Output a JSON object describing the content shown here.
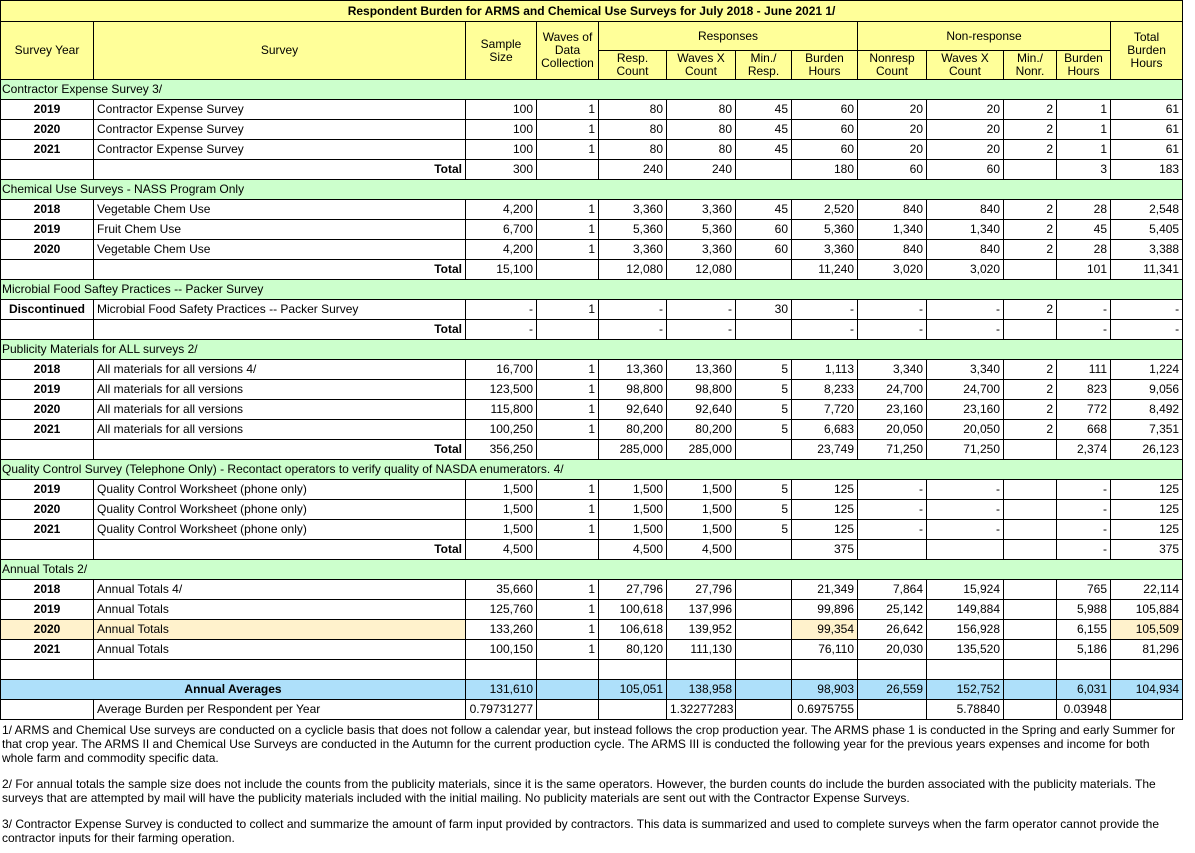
{
  "title": "Respondent Burden for ARMS and Chemical Use Surveys for July 2018 - June 2021 1/",
  "headers": {
    "survey_year": "Survey Year",
    "survey": "Survey",
    "sample_size": "Sample Size",
    "waves": "Waves of Data Collection",
    "responses": "Responses",
    "nonresponse": "Non-response",
    "resp_count": "Resp. Count",
    "waves_x_count": "Waves X Count",
    "min_resp": "Min./ Resp.",
    "burden_hours": "Burden Hours",
    "nonresp_count": "Nonresp Count",
    "waves_x_count2": "Waves X Count",
    "min_nonr": "Min./ Nonr.",
    "burden_hours2": "Burden Hours",
    "total_burden": "Total Burden Hours"
  },
  "rows": [
    {
      "kind": "section",
      "label": "Contractor Expense Survey 3/"
    },
    {
      "kind": "data",
      "cells": [
        "2019",
        "Contractor Expense Survey",
        "100",
        "1",
        "80",
        "80",
        "45",
        "60",
        "20",
        "20",
        "2",
        "1",
        "61"
      ]
    },
    {
      "kind": "data",
      "cells": [
        "2020",
        "Contractor Expense Survey",
        "100",
        "1",
        "80",
        "80",
        "45",
        "60",
        "20",
        "20",
        "2",
        "1",
        "61"
      ]
    },
    {
      "kind": "data",
      "cells": [
        "2021",
        "Contractor Expense Survey",
        "100",
        "1",
        "80",
        "80",
        "45",
        "60",
        "20",
        "20",
        "2",
        "1",
        "61"
      ]
    },
    {
      "kind": "total",
      "cells": [
        "",
        "Total",
        "300",
        "",
        "240",
        "240",
        "",
        "180",
        "60",
        "60",
        "",
        "3",
        "183"
      ]
    },
    {
      "kind": "section",
      "label": "Chemical Use Surveys - NASS Program Only"
    },
    {
      "kind": "data",
      "cells": [
        "2018",
        "Vegetable Chem Use",
        "4,200",
        "1",
        "3,360",
        "3,360",
        "45",
        "2,520",
        "840",
        "840",
        "2",
        "28",
        "2,548"
      ]
    },
    {
      "kind": "data",
      "cells": [
        "2019",
        "Fruit Chem Use",
        "6,700",
        "1",
        "5,360",
        "5,360",
        "60",
        "5,360",
        "1,340",
        "1,340",
        "2",
        "45",
        "5,405"
      ]
    },
    {
      "kind": "data",
      "cells": [
        "2020",
        "Vegetable Chem Use",
        "4,200",
        "1",
        "3,360",
        "3,360",
        "60",
        "3,360",
        "840",
        "840",
        "2",
        "28",
        "3,388"
      ]
    },
    {
      "kind": "total",
      "cells": [
        "",
        "Total",
        "15,100",
        "",
        "12,080",
        "12,080",
        "",
        "11,240",
        "3,020",
        "3,020",
        "",
        "101",
        "11,341"
      ]
    },
    {
      "kind": "section",
      "label": "Microbial Food Saftey Practices -- Packer Survey"
    },
    {
      "kind": "data",
      "cells": [
        "Discontinued",
        "Microbial Food Safety Practices -- Packer Survey",
        "-",
        "1",
        "-",
        "-",
        "30",
        "-",
        "-",
        "-",
        "2",
        "-",
        "-"
      ]
    },
    {
      "kind": "total",
      "cells": [
        "",
        "Total",
        "-",
        "",
        "-",
        "-",
        "",
        "-",
        "-",
        "-",
        "",
        "-",
        "-"
      ]
    },
    {
      "kind": "section",
      "label": "Publicity Materials for ALL surveys 2/"
    },
    {
      "kind": "data",
      "cells": [
        "2018",
        "All materials for all versions 4/",
        "16,700",
        "1",
        "13,360",
        "13,360",
        "5",
        "1,113",
        "3,340",
        "3,340",
        "2",
        "111",
        "1,224"
      ]
    },
    {
      "kind": "data",
      "cells": [
        "2019",
        "All materials for all versions",
        "123,500",
        "1",
        "98,800",
        "98,800",
        "5",
        "8,233",
        "24,700",
        "24,700",
        "2",
        "823",
        "9,056"
      ]
    },
    {
      "kind": "data",
      "cells": [
        "2020",
        "All materials for all versions",
        "115,800",
        "1",
        "92,640",
        "92,640",
        "5",
        "7,720",
        "23,160",
        "23,160",
        "2",
        "772",
        "8,492"
      ]
    },
    {
      "kind": "data",
      "cells": [
        "2021",
        "All materials for all versions",
        "100,250",
        "1",
        "80,200",
        "80,200",
        "5",
        "6,683",
        "20,050",
        "20,050",
        "2",
        "668",
        "7,351"
      ]
    },
    {
      "kind": "total",
      "cells": [
        "",
        "Total",
        "356,250",
        "",
        "285,000",
        "285,000",
        "",
        "23,749",
        "71,250",
        "71,250",
        "",
        "2,374",
        "26,123"
      ]
    },
    {
      "kind": "section",
      "label": "Quality Control Survey (Telephone Only) - Recontact operators to verify quality of NASDA enumerators. 4/"
    },
    {
      "kind": "data",
      "cells": [
        "2019",
        "Quality Control Worksheet (phone only)",
        "1,500",
        "1",
        "1,500",
        "1,500",
        "5",
        "125",
        "-",
        "-",
        "",
        "-",
        "125"
      ]
    },
    {
      "kind": "data",
      "cells": [
        "2020",
        "Quality Control Worksheet (phone only)",
        "1,500",
        "1",
        "1,500",
        "1,500",
        "5",
        "125",
        "-",
        "-",
        "",
        "-",
        "125"
      ]
    },
    {
      "kind": "data",
      "cells": [
        "2021",
        "Quality Control Worksheet (phone only)",
        "1,500",
        "1",
        "1,500",
        "1,500",
        "5",
        "125",
        "-",
        "-",
        "",
        "-",
        "125"
      ]
    },
    {
      "kind": "total",
      "cells": [
        "",
        "Total",
        "4,500",
        "",
        "4,500",
        "4,500",
        "",
        "375",
        "",
        "",
        "",
        "-",
        "375"
      ]
    },
    {
      "kind": "section",
      "label": "Annual Totals 2/"
    },
    {
      "kind": "data",
      "cells": [
        "2018",
        "Annual Totals 4/",
        "35,660",
        "1",
        "27,796",
        "27,796",
        "",
        "21,349",
        "7,864",
        "15,924",
        "",
        "765",
        "22,114"
      ]
    },
    {
      "kind": "data",
      "cells": [
        "2019",
        "Annual Totals",
        "125,760",
        "1",
        "100,618",
        "137,996",
        "",
        "99,896",
        "25,142",
        "149,884",
        "",
        "5,988",
        "105,884"
      ]
    },
    {
      "kind": "data",
      "highlight": true,
      "cells": [
        "2020",
        "Annual Totals",
        "133,260",
        "1",
        "106,618",
        "139,952",
        "",
        "99,354",
        "26,642",
        "156,928",
        "",
        "6,155",
        "105,509"
      ]
    },
    {
      "kind": "data",
      "cells": [
        "2021",
        "Annual Totals",
        "100,150",
        "1",
        "80,120",
        "111,130",
        "",
        "76,110",
        "20,030",
        "135,520",
        "",
        "5,186",
        "81,296"
      ]
    },
    {
      "kind": "blank",
      "cells": [
        "",
        "",
        "",
        "",
        "",
        "",
        "",
        "",
        "",
        "",
        "",
        "",
        ""
      ]
    },
    {
      "kind": "avg",
      "label": "Annual Averages",
      "cells": [
        "",
        "",
        "131,610",
        "",
        "105,051",
        "138,958",
        "",
        "98,903",
        "26,559",
        "152,752",
        "",
        "6,031",
        "104,934"
      ]
    },
    {
      "kind": "avgburden",
      "cells": [
        "",
        "Average Burden per Respondent per Year",
        "0.79731277",
        "",
        "",
        "1.32277283",
        "",
        "0.6975755",
        "",
        "5.78840",
        "",
        "0.03948",
        ""
      ]
    }
  ],
  "notes": [
    "1/ ARMS and Chemical Use surveys are conducted on a cyclicle basis that does not follow a calendar year, but instead follows the crop production year.  The ARMS phase 1 is conducted in the Spring and early Summer for that crop year.  The ARMS II and Chemical Use Surveys are conducted in the Autumn for the current production cycle. The ARMS III is conducted the following year for the previous years expenses and income for  both whole farm and commodity specific data.",
    "2/ For annual totals the sample size does not include the counts from the publicity materials, since it is the same operators.  However, the burden counts do include the burden associated with the publicity materials. The surveys that are attempted by mail will have the publicity materials included with the initial mailing.  No publicity materials are sent out with the Contractor Expense Surveys.",
    "3/ Contractor Expense Survey is conducted to collect and summarize the amount of farm input provided by contractors.  This data is summarized and used to complete surveys when the farm operator cannot provide the contractor inputs for their farming operation."
  ],
  "colors": {
    "header": "#ffff99",
    "section": "#ccffcc",
    "averages": "#aee0fa",
    "highlight": "#fff2cc"
  }
}
